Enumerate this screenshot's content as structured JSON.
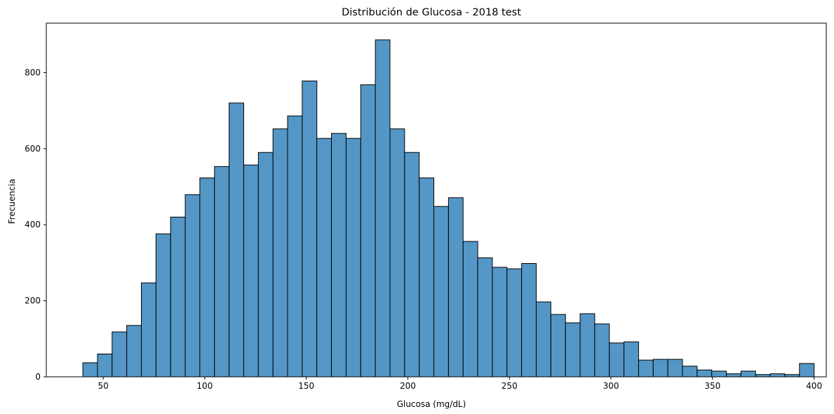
{
  "chart_data": {
    "type": "bar",
    "title": "Distribución de Glucosa - 2018 test",
    "xlabel": "Glucosa (mg/dL)",
    "ylabel": "Frecuencia",
    "bar_color": "#5497c6",
    "edge_color": "#000000",
    "xlim": [
      22,
      406
    ],
    "ylim": [
      0,
      930
    ],
    "x_ticks": [
      50,
      100,
      150,
      200,
      250,
      300,
      350,
      400
    ],
    "y_ticks": [
      0,
      200,
      400,
      600,
      800
    ],
    "grid": false,
    "bin_start": 40,
    "bin_width": 7.2,
    "values": [
      37,
      60,
      118,
      135,
      247,
      376,
      420,
      479,
      523,
      553,
      720,
      557,
      590,
      652,
      686,
      778,
      627,
      640,
      627,
      768,
      886,
      652,
      590,
      523,
      448,
      471,
      356,
      313,
      288,
      284,
      298,
      197,
      164,
      142,
      166,
      139,
      89,
      92,
      44,
      46,
      46,
      28,
      18,
      15,
      8,
      15,
      6,
      8,
      6,
      35
    ]
  }
}
